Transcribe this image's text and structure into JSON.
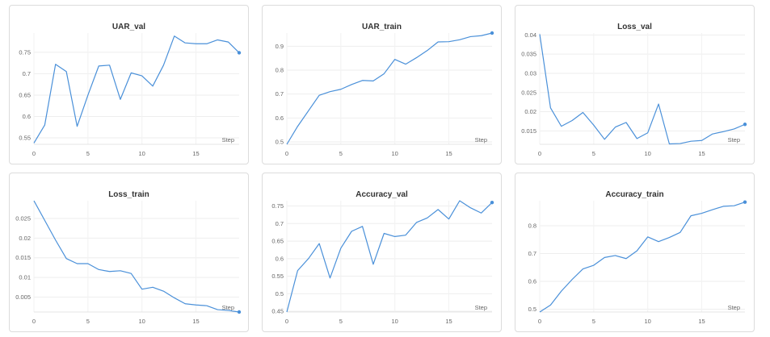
{
  "chart_data": [
    {
      "type": "line",
      "title": "UAR_val",
      "xlabel": "Step",
      "xticks": [
        0,
        5,
        10,
        15
      ],
      "yticks": [
        0.55,
        0.6,
        0.65,
        0.7,
        0.75
      ],
      "ytick_labels": [
        "0.55",
        "0.6",
        "0.65",
        "0.7",
        "0.75"
      ],
      "xlim": [
        0,
        19
      ],
      "ylim": [
        0.535,
        0.795
      ],
      "x": [
        0,
        1,
        2,
        3,
        4,
        5,
        6,
        7,
        8,
        9,
        10,
        11,
        12,
        13,
        14,
        15,
        16,
        17,
        18,
        19
      ],
      "series": [
        {
          "values": [
            0.538,
            0.58,
            0.722,
            0.705,
            0.577,
            0.65,
            0.718,
            0.72,
            0.64,
            0.702,
            0.695,
            0.671,
            0.72,
            0.788,
            0.772,
            0.77,
            0.77,
            0.779,
            0.774,
            0.749
          ]
        }
      ],
      "color": "#4a90d9",
      "grid": true
    },
    {
      "type": "line",
      "title": "UAR_train",
      "xlabel": "Step",
      "xticks": [
        0,
        5,
        10,
        15
      ],
      "yticks": [
        0.5,
        0.6,
        0.7,
        0.8,
        0.9
      ],
      "ytick_labels": [
        "0.5",
        "0.6",
        "0.7",
        "0.8",
        "0.9"
      ],
      "xlim": [
        0,
        19
      ],
      "ylim": [
        0.49,
        0.955
      ],
      "x": [
        0,
        1,
        2,
        3,
        4,
        5,
        6,
        7,
        8,
        9,
        10,
        11,
        12,
        13,
        14,
        15,
        16,
        17,
        18,
        19
      ],
      "series": [
        {
          "values": [
            0.49,
            0.565,
            0.63,
            0.695,
            0.71,
            0.72,
            0.74,
            0.757,
            0.755,
            0.785,
            0.845,
            0.825,
            0.852,
            0.882,
            0.918,
            0.919,
            0.927,
            0.94,
            0.944,
            0.955
          ]
        }
      ],
      "color": "#4a90d9",
      "grid": true
    },
    {
      "type": "line",
      "title": "Loss_val",
      "xlabel": "Step",
      "xticks": [
        0,
        5,
        10,
        15
      ],
      "yticks": [
        0.015,
        0.02,
        0.025,
        0.03,
        0.035,
        0.04
      ],
      "ytick_labels": [
        "0.015",
        "0.02",
        "0.025",
        "0.03",
        "0.035",
        "0.04"
      ],
      "xlim": [
        0,
        19
      ],
      "ylim": [
        0.0115,
        0.0405
      ],
      "x": [
        0,
        1,
        2,
        3,
        4,
        5,
        6,
        7,
        8,
        9,
        10,
        11,
        12,
        13,
        14,
        15,
        16,
        17,
        18,
        19
      ],
      "series": [
        {
          "values": [
            0.0402,
            0.021,
            0.0162,
            0.0177,
            0.0198,
            0.0165,
            0.0128,
            0.016,
            0.0172,
            0.013,
            0.0145,
            0.022,
            0.0116,
            0.0117,
            0.0123,
            0.0125,
            0.0142,
            0.0148,
            0.0155,
            0.0167
          ]
        }
      ],
      "color": "#4a90d9",
      "grid": true
    },
    {
      "type": "line",
      "title": "Loss_train",
      "xlabel": "Step",
      "xticks": [
        0,
        5,
        10,
        15
      ],
      "yticks": [
        0.005,
        0.01,
        0.015,
        0.02,
        0.025
      ],
      "ytick_labels": [
        "0.005",
        "0.01",
        "0.015",
        "0.02",
        "0.025"
      ],
      "xlim": [
        0,
        19
      ],
      "ylim": [
        0.0012,
        0.0295
      ],
      "x": [
        0,
        1,
        2,
        3,
        4,
        5,
        6,
        7,
        8,
        9,
        10,
        11,
        12,
        13,
        14,
        15,
        16,
        17,
        18,
        19
      ],
      "series": [
        {
          "values": [
            0.0295,
            0.0245,
            0.0195,
            0.0148,
            0.0135,
            0.0135,
            0.012,
            0.0115,
            0.0117,
            0.011,
            0.007,
            0.0075,
            0.0065,
            0.0048,
            0.0033,
            0.003,
            0.0028,
            0.0018,
            0.0016,
            0.0012
          ]
        }
      ],
      "color": "#4a90d9",
      "grid": true
    },
    {
      "type": "line",
      "title": "Accuracy_val",
      "xlabel": "Step",
      "xticks": [
        0,
        5,
        10,
        15
      ],
      "yticks": [
        0.45,
        0.5,
        0.55,
        0.6,
        0.65,
        0.7,
        0.75
      ],
      "ytick_labels": [
        "0.45",
        "0.5",
        "0.55",
        "0.6",
        "0.65",
        "0.7",
        "0.75"
      ],
      "xlim": [
        0,
        19
      ],
      "ylim": [
        0.448,
        0.765
      ],
      "x": [
        0,
        1,
        2,
        3,
        4,
        5,
        6,
        7,
        8,
        9,
        10,
        11,
        12,
        13,
        14,
        15,
        16,
        17,
        18,
        19
      ],
      "series": [
        {
          "values": [
            0.448,
            0.566,
            0.6,
            0.643,
            0.545,
            0.63,
            0.678,
            0.692,
            0.584,
            0.672,
            0.663,
            0.667,
            0.703,
            0.716,
            0.74,
            0.713,
            0.765,
            0.745,
            0.73,
            0.76
          ]
        }
      ],
      "color": "#4a90d9",
      "grid": true
    },
    {
      "type": "line",
      "title": "Accuracy_train",
      "xlabel": "Step",
      "xticks": [
        0,
        5,
        10,
        15
      ],
      "yticks": [
        0.5,
        0.6,
        0.7,
        0.8
      ],
      "ytick_labels": [
        "0.5",
        "0.6",
        "0.7",
        "0.8"
      ],
      "xlim": [
        0,
        19
      ],
      "ylim": [
        0.49,
        0.89
      ],
      "x": [
        0,
        1,
        2,
        3,
        4,
        5,
        6,
        7,
        8,
        9,
        10,
        11,
        12,
        13,
        14,
        15,
        16,
        17,
        18,
        19
      ],
      "series": [
        {
          "values": [
            0.49,
            0.515,
            0.565,
            0.607,
            0.645,
            0.658,
            0.686,
            0.693,
            0.682,
            0.71,
            0.76,
            0.743,
            0.758,
            0.776,
            0.836,
            0.845,
            0.858,
            0.87,
            0.872,
            0.885
          ]
        }
      ],
      "color": "#4a90d9",
      "grid": true
    }
  ]
}
